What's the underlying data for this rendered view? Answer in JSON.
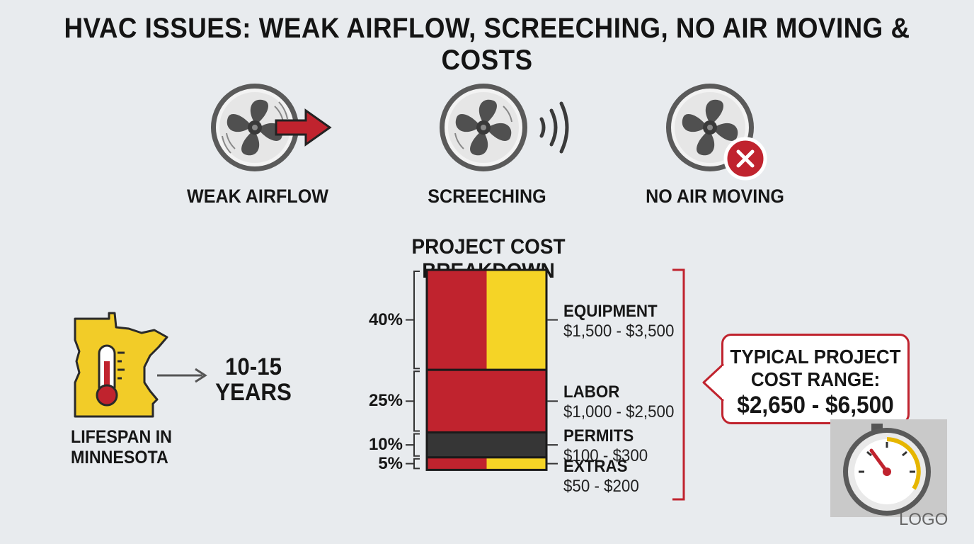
{
  "title": "HVAC ISSUES: WEAK AIRFLOW, SCREECHING, NO AIR MOVING & COSTS",
  "issues": [
    {
      "label": "WEAK AIRFLOW",
      "icon": "fan-arrow-icon"
    },
    {
      "label": "SCREECHING",
      "icon": "fan-sound-waves-icon"
    },
    {
      "label": "NO AIR MOVING",
      "icon": "fan-x-icon"
    }
  ],
  "lifespan": {
    "value": "10-15\nYEARS",
    "label": "LIFESPAN IN\nMINNESOTA",
    "icon": "minnesota-thermometer-icon"
  },
  "callout": {
    "text": "TYPICAL PROJECT\nCOST RANGE:",
    "value": "$2,650 - $6,500"
  },
  "logo": "LOGO",
  "colors": {
    "red": "#c0232e",
    "yellow": "#f5d426",
    "dark": "#363636",
    "accent_x": "#c0232e"
  },
  "chart_data": {
    "type": "bar",
    "title": "PROJECT COST BREAKDOWN",
    "stacked": true,
    "categories": [
      {
        "name": "EQUIPMENT",
        "range": "$1,500 - $3,500",
        "percent": 40,
        "percent_label": "40%",
        "fill": "red-yellow"
      },
      {
        "name": "LABOR",
        "range": "$1,000 - $2,500",
        "percent": 25,
        "percent_label": "25%",
        "fill": "red"
      },
      {
        "name": "PERMITS",
        "range": "$100 - $300",
        "percent": 10,
        "percent_label": "10%",
        "fill": "dark"
      },
      {
        "name": "EXTRAS",
        "range": "$50 - $200",
        "percent": 5,
        "percent_label": "5%",
        "fill": "red-yellow"
      }
    ]
  }
}
